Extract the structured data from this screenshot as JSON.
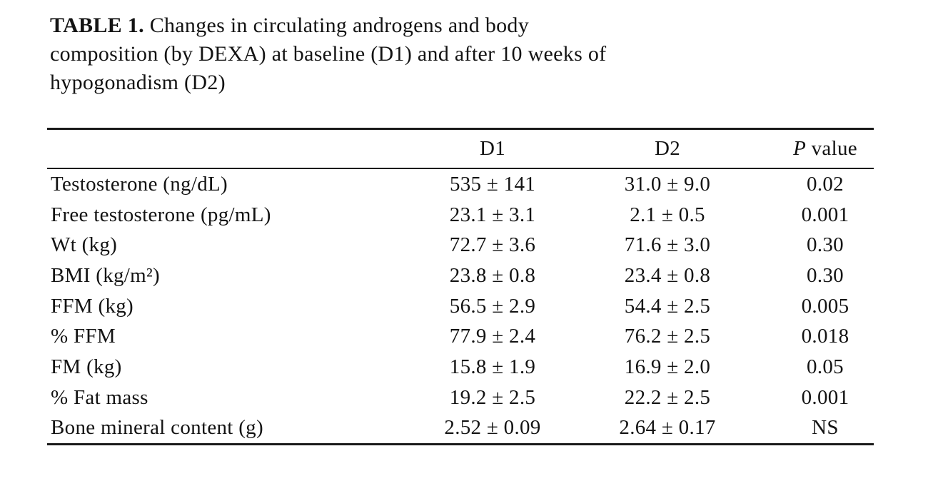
{
  "title": {
    "line1_bold": "TABLE 1.",
    "line1_rest": " Changes in circulating androgens and body",
    "line2": "composition (by DEXA) at baseline (D1) and after 10 weeks of",
    "line3": "hypogonadism (D2)"
  },
  "table": {
    "header": {
      "label": "",
      "d1": "D1",
      "d2": "D2",
      "p_italic": "P",
      "p_rest": " value"
    },
    "rows": [
      {
        "label": "Testosterone (ng/dL)",
        "d1": "535 ± 141",
        "d2": "31.0 ± 9.0",
        "p": "0.02"
      },
      {
        "label": "Free testosterone (pg/mL)",
        "d1": "23.1 ± 3.1",
        "d2": "2.1 ± 0.5",
        "p": "0.001"
      },
      {
        "label": "Wt (kg)",
        "d1": "72.7 ± 3.6",
        "d2": "71.6 ± 3.0",
        "p": "0.30"
      },
      {
        "label": "BMI (kg/m²)",
        "d1": "23.8 ± 0.8",
        "d2": "23.4 ± 0.8",
        "p": "0.30"
      },
      {
        "label": "FFM (kg)",
        "d1": "56.5 ± 2.9",
        "d2": "54.4 ± 2.5",
        "p": "0.005"
      },
      {
        "label": "% FFM",
        "d1": "77.9 ± 2.4",
        "d2": "76.2 ± 2.5",
        "p": "0.018"
      },
      {
        "label": "FM (kg)",
        "d1": "15.8 ± 1.9",
        "d2": "16.9 ± 2.0",
        "p": "0.05"
      },
      {
        "label": "% Fat mass",
        "d1": "19.2 ± 2.5",
        "d2": "22.2 ± 2.5",
        "p": "0.001"
      },
      {
        "label": "Bone mineral content (g)",
        "d1": "2.52 ± 0.09",
        "d2": "2.64 ± 0.17",
        "p": "NS"
      }
    ]
  },
  "chart_data": {
    "type": "table",
    "title": "TABLE 1. Changes in circulating androgens and body composition (by DEXA) at baseline (D1) and after 10 weeks of hypogonadism (D2)",
    "columns": [
      "",
      "D1",
      "D2",
      "P value"
    ],
    "rows": [
      [
        "Testosterone (ng/dL)",
        "535 ± 141",
        "31.0 ± 9.0",
        "0.02"
      ],
      [
        "Free testosterone (pg/mL)",
        "23.1 ± 3.1",
        "2.1 ± 0.5",
        "0.001"
      ],
      [
        "Wt (kg)",
        "72.7 ± 3.6",
        "71.6 ± 3.0",
        "0.30"
      ],
      [
        "BMI (kg/m²)",
        "23.8 ± 0.8",
        "23.4 ± 0.8",
        "0.30"
      ],
      [
        "FFM (kg)",
        "56.5 ± 2.9",
        "54.4 ± 2.5",
        "0.005"
      ],
      [
        "% FFM",
        "77.9 ± 2.4",
        "76.2 ± 2.5",
        "0.018"
      ],
      [
        "FM (kg)",
        "15.8 ± 1.9",
        "16.9 ± 2.0",
        "0.05"
      ],
      [
        "% Fat mass",
        "19.2 ± 2.5",
        "22.2 ± 2.5",
        "0.001"
      ],
      [
        "Bone mineral content (g)",
        "2.52 ± 0.09",
        "2.64 ± 0.17",
        "NS"
      ]
    ],
    "ink_color": "#1a1a1a",
    "background": "#ffffff"
  }
}
